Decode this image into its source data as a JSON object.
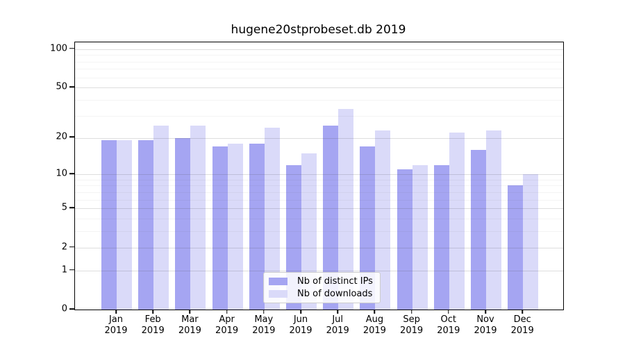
{
  "chart_data": {
    "type": "bar",
    "title": "hugene20stprobeset.db 2019",
    "xlabel": "",
    "ylabel": "",
    "categories": [
      "Jan 2019",
      "Feb 2019",
      "Mar 2019",
      "Apr 2019",
      "May 2019",
      "Jun 2019",
      "Jul 2019",
      "Aug 2019",
      "Sep 2019",
      "Oct 2019",
      "Nov 2019",
      "Dec 2019"
    ],
    "series": [
      {
        "name": "Nb of distinct IPs",
        "key": "ips",
        "color": "#a5a5f2",
        "values": [
          19,
          19,
          20,
          17,
          18,
          12,
          25,
          17,
          11,
          12,
          16,
          8
        ]
      },
      {
        "name": "Nb of downloads",
        "key": "downloads",
        "color": "#dadaf9",
        "values": [
          19,
          25,
          25,
          18,
          24,
          15,
          34,
          23,
          12,
          22,
          23,
          10
        ]
      }
    ],
    "y_scale": "log1p",
    "y_ticks": [
      0,
      1,
      2,
      5,
      10,
      20,
      50,
      100
    ],
    "y_minor_ticks": [
      3,
      4,
      6,
      7,
      8,
      9,
      30,
      40,
      60,
      70,
      80,
      90
    ],
    "ylim": [
      0,
      113
    ],
    "grid": true,
    "legend_position": "bottom-center"
  },
  "style": {
    "spine_color": "#000000",
    "major_grid_color": "#d6d6d6",
    "minor_grid_color": "#ededed",
    "background": "#ffffff"
  }
}
